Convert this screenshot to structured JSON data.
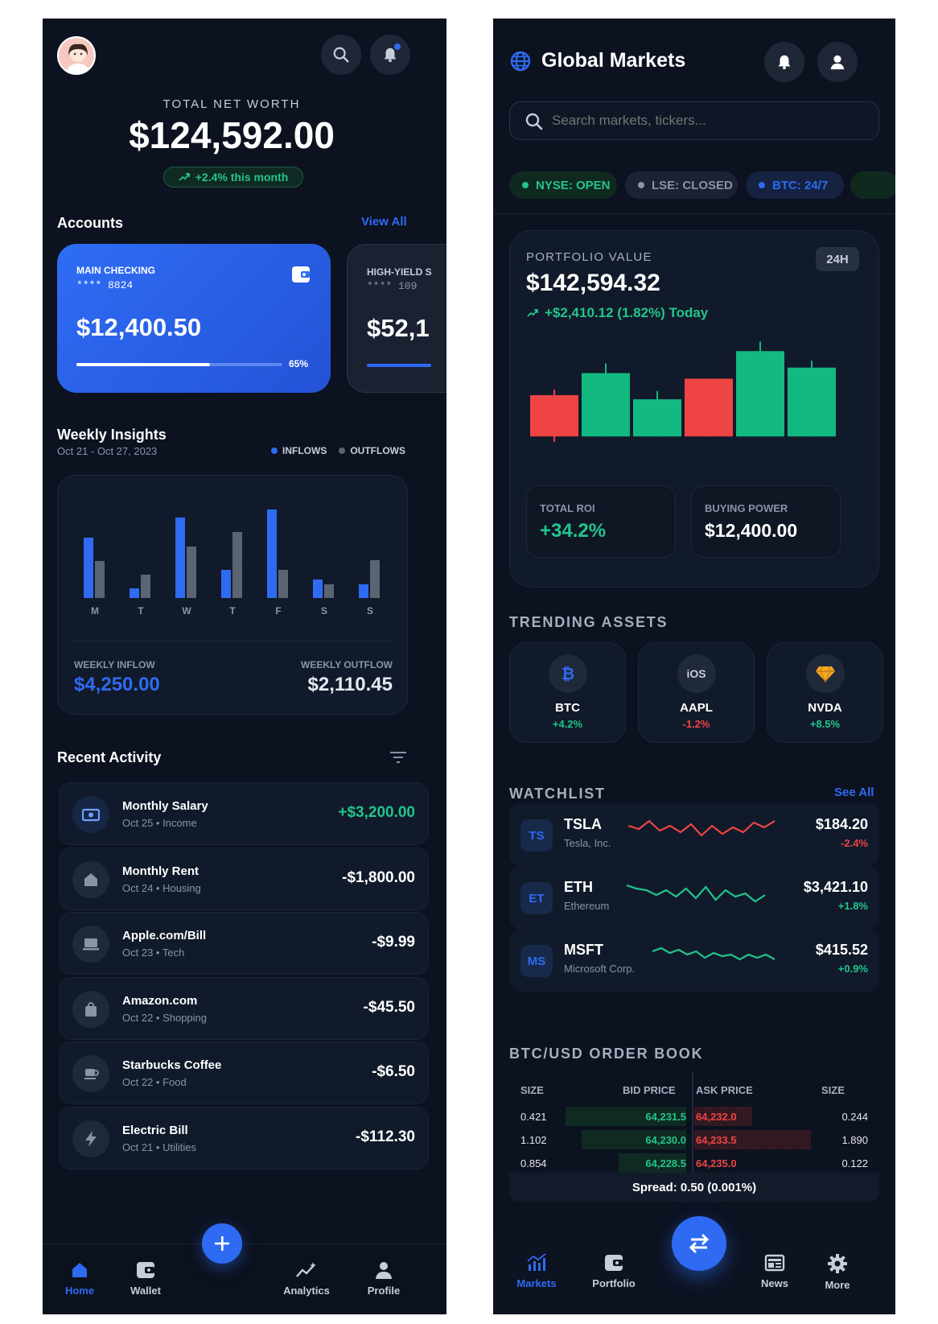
{
  "left": {
    "net_worth_label": "TOTAL NET WORTH",
    "net_worth": "$124,592.00",
    "net_worth_change": "+2.4% this month",
    "accounts_title": "Accounts",
    "view_all": "View All",
    "account1": {
      "name": "MAIN CHECKING",
      "number": "**** 8824",
      "balance": "$12,400.50",
      "progress": 0.65,
      "progress_label": "65%"
    },
    "account2": {
      "name": "HIGH-YIELD S",
      "number": "**** 109",
      "balance": "$52,1"
    },
    "insights_title": "Weekly Insights",
    "insights_range": "Oct 21 - Oct 27, 2023",
    "legend_in": "INFLOWS",
    "legend_out": "OUTFLOWS",
    "weekly_inflow_label": "WEEKLY INFLOW",
    "weekly_inflow": "$4,250.00",
    "weekly_outflow_label": "WEEKLY OUTFLOW",
    "weekly_outflow": "$2,110.45",
    "recent_title": "Recent Activity",
    "transactions": [
      {
        "title": "Monthly Salary",
        "sub": "Oct 25 • Income",
        "amount": "+$3,200.00",
        "icon": "cash-icon",
        "positive": true
      },
      {
        "title": "Monthly Rent",
        "sub": "Oct 24 • Housing",
        "amount": "-$1,800.00",
        "icon": "home-icon",
        "positive": false
      },
      {
        "title": "Apple.com/Bill",
        "sub": "Oct 23 • Tech",
        "amount": "-$9.99",
        "icon": "laptop-icon",
        "positive": false
      },
      {
        "title": "Amazon.com",
        "sub": "Oct 22 • Shopping",
        "amount": "-$45.50",
        "icon": "shopping-bag-icon",
        "positive": false
      },
      {
        "title": "Starbucks Coffee",
        "sub": "Oct 22 • Food",
        "amount": "-$6.50",
        "icon": "coffee-icon",
        "positive": false
      },
      {
        "title": "Electric Bill",
        "sub": "Oct 21 • Utilities",
        "amount": "-$112.30",
        "icon": "bolt-icon",
        "positive": false
      }
    ],
    "nav": {
      "home": "Home",
      "wallet": "Wallet",
      "analytics": "Analytics",
      "profile": "Profile"
    }
  },
  "right": {
    "title": "Global Markets",
    "search_placeholder": "Search markets, tickers...",
    "status_pills": [
      {
        "label": "NYSE: OPEN",
        "color": "#22c58b"
      },
      {
        "label": "LSE: CLOSED",
        "color": "#8a94a6"
      },
      {
        "label": "BTC: 24/7",
        "color": "#2e6bf2"
      }
    ],
    "portfolio_label": "PORTFOLIO VALUE",
    "portfolio_period": "24H",
    "portfolio_value": "$142,594.32",
    "portfolio_change": "+$2,410.12 (1.82%) Today",
    "roi_label": "TOTAL ROI",
    "roi_value": "+34.2%",
    "buying_power_label": "BUYING POWER",
    "buying_power_value": "$12,400.00",
    "trending_title": "TRENDING ASSETS",
    "trending": [
      {
        "symbol": "BTC",
        "change": "+4.2%",
        "positive": true,
        "icon": "bitcoin-icon"
      },
      {
        "symbol": "AAPL",
        "change": "-1.2%",
        "positive": false,
        "icon": "ios-icon",
        "icon_text": "iOS"
      },
      {
        "symbol": "NVDA",
        "change": "+8.5%",
        "positive": true,
        "icon": "diamond-icon"
      }
    ],
    "watchlist_title": "WATCHLIST",
    "see_all": "See All",
    "watchlist": [
      {
        "badge": "TS",
        "symbol": "TSLA",
        "name": "Tesla, Inc.",
        "price": "$184.20",
        "change": "-2.4%",
        "positive": false
      },
      {
        "badge": "ET",
        "symbol": "ETH",
        "name": "Ethereum",
        "price": "$3,421.10",
        "change": "+1.8%",
        "positive": true
      },
      {
        "badge": "MS",
        "symbol": "MSFT",
        "name": "Microsoft Corp.",
        "price": "$415.52",
        "change": "+0.9%",
        "positive": true
      }
    ],
    "orderbook_title": "BTC/USD ORDER BOOK",
    "orderbook_headers": {
      "size": "SIZE",
      "bid": "BID PRICE",
      "ask": "ASK PRICE",
      "size2": "SIZE"
    },
    "orderbook_rows": [
      {
        "bid_size": "0.421",
        "bid": "64,231.5",
        "ask": "64,232.0",
        "ask_size": "0.244"
      },
      {
        "bid_size": "1.102",
        "bid": "64,230.0",
        "ask": "64,233.5",
        "ask_size": "1.890"
      },
      {
        "bid_size": "0.854",
        "bid": "64,228.5",
        "ask": "64,235.0",
        "ask_size": "0.122"
      }
    ],
    "spread": "Spread: 0.50 (0.001%)",
    "nav": {
      "markets": "Markets",
      "portfolio": "Portfolio",
      "news": "News",
      "more": "More"
    }
  },
  "chart_data": [
    {
      "type": "bar",
      "categories": [
        "M",
        "T",
        "W",
        "T",
        "F",
        "S",
        "S"
      ],
      "series": [
        {
          "name": "INFLOWS",
          "values": [
            75,
            12,
            100,
            35,
            110,
            23,
            17
          ],
          "color": "#2e6bf2"
        },
        {
          "name": "OUTFLOWS",
          "values": [
            46,
            29,
            64,
            82,
            35,
            17,
            47
          ],
          "color": "#5b6472"
        }
      ],
      "ylim": [
        0,
        120
      ]
    },
    {
      "type": "candlestick",
      "candles": [
        {
          "open": 110,
          "close": 50,
          "high": 118,
          "low": 42,
          "up": false
        },
        {
          "open": 50,
          "close": 142,
          "high": 156,
          "low": 50,
          "up": true
        },
        {
          "open": 50,
          "close": 104,
          "high": 116,
          "low": 50,
          "up": true
        },
        {
          "open": 134,
          "close": 50,
          "high": 134,
          "low": 50,
          "up": false
        },
        {
          "open": 50,
          "close": 174,
          "high": 188,
          "low": 50,
          "up": true
        },
        {
          "open": 50,
          "close": 150,
          "high": 160,
          "low": 50,
          "up": true
        }
      ],
      "ylim": [
        0,
        200
      ]
    },
    {
      "type": "line",
      "name": "sparklines",
      "series": [
        {
          "values": [
            30,
            26,
            36,
            24,
            30,
            22,
            32,
            18,
            30,
            20,
            28,
            22,
            34,
            28,
            36
          ],
          "color": "#ef4444"
        },
        {
          "values": [
            34,
            30,
            28,
            22,
            28,
            20,
            30,
            18,
            32,
            16,
            28,
            20,
            24,
            14,
            22
          ],
          "color": "#22c58b"
        },
        {
          "values": [
            30,
            34,
            28,
            32,
            26,
            30,
            22,
            28,
            24,
            26,
            20,
            26,
            22,
            26,
            20
          ],
          "color": "#22c58b"
        }
      ],
      "ylim": [
        0,
        40
      ]
    }
  ]
}
